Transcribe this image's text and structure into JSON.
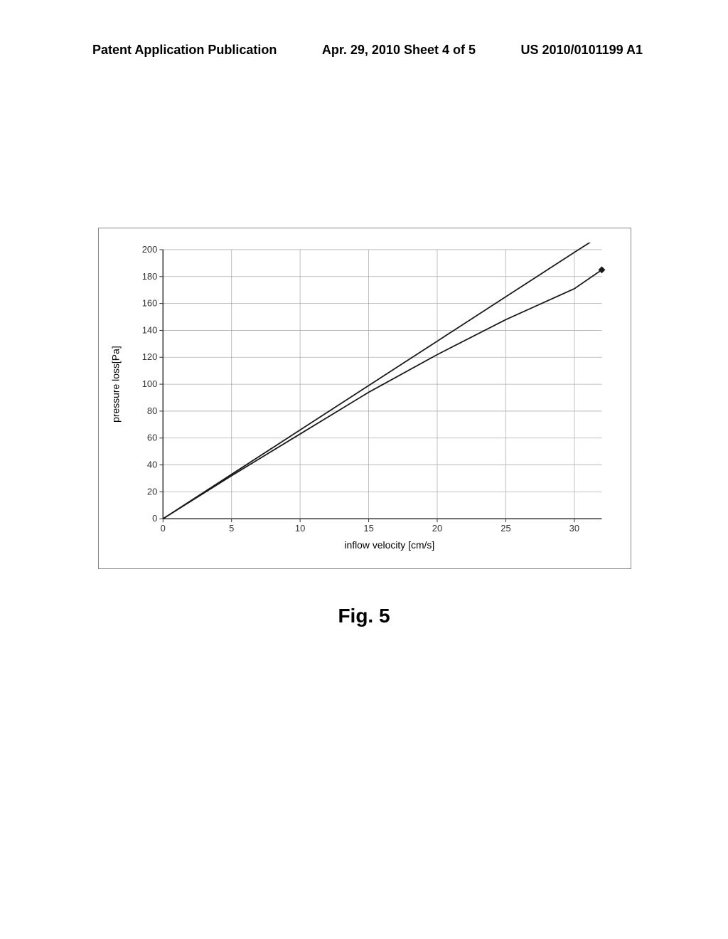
{
  "header": {
    "left": "Patent Application Publication",
    "center": "Apr. 29, 2010  Sheet 4 of 5",
    "right": "US 2010/0101199 A1"
  },
  "figure_caption": "Fig. 5",
  "chart": {
    "type": "line",
    "xlabel": "inflow velocity [cm/s]",
    "ylabel": "pressure loss[Pa]",
    "xlim": [
      0,
      32
    ],
    "ylim": [
      0,
      200
    ],
    "xticks": [
      0,
      5,
      10,
      15,
      20,
      25,
      30
    ],
    "yticks": [
      0,
      20,
      40,
      60,
      80,
      100,
      120,
      140,
      160,
      180,
      200
    ],
    "grid_color": "#b0b0b0",
    "line_color": "#1a1a1a",
    "background_color": "#ffffff",
    "series1": {
      "x": [
        0,
        5,
        10,
        15,
        20,
        25,
        30,
        32
      ],
      "y": [
        0,
        33,
        66,
        99,
        132,
        165,
        198,
        211
      ]
    },
    "series2": {
      "x": [
        0,
        5,
        10,
        15,
        20,
        25,
        30,
        32
      ],
      "y": [
        0,
        32,
        63,
        94,
        122,
        148,
        171,
        185
      ]
    },
    "marker_x": 32,
    "marker_y": 185,
    "label_fontsize": 14,
    "tick_fontsize": 13,
    "line_width": 1.8
  }
}
